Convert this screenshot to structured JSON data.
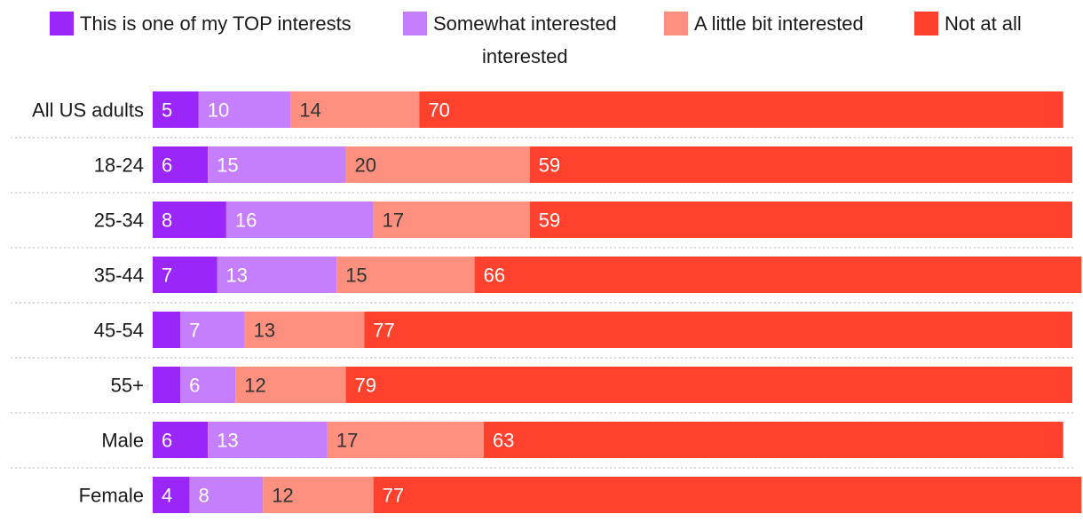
{
  "chart_data": {
    "type": "bar",
    "orientation": "horizontal",
    "stacked": true,
    "categories": [
      "All US adults",
      "18-24",
      "25-34",
      "35-44",
      "45-54",
      "55+",
      "Male",
      "Female"
    ],
    "series": [
      {
        "name": "This is one of my TOP interests",
        "color": "#9B26FA",
        "values": [
          5,
          6,
          8,
          7,
          3,
          3,
          6,
          4
        ],
        "labels": [
          "5",
          "6",
          "8",
          "7",
          "",
          "",
          "6",
          "4"
        ]
      },
      {
        "name": "Somewhat interested",
        "color": "#C57EFC",
        "values": [
          10,
          15,
          16,
          13,
          7,
          6,
          13,
          8
        ],
        "labels": [
          "10",
          "15",
          "16",
          "13",
          "7",
          "6",
          "13",
          "8"
        ]
      },
      {
        "name": "A little bit interested",
        "color": "#FF8F7E",
        "values": [
          14,
          20,
          17,
          15,
          13,
          12,
          17,
          12
        ],
        "labels": [
          "14",
          "20",
          "17",
          "15",
          "13",
          "12",
          "17",
          "12"
        ]
      },
      {
        "name": "Not at all interested",
        "color": "#FF412E",
        "values": [
          70,
          59,
          59,
          66,
          77,
          79,
          63,
          77
        ],
        "labels": [
          "70",
          "59",
          "59",
          "66",
          "77",
          "79",
          "63",
          "77"
        ]
      }
    ],
    "legend_position": "top",
    "gridlines": "dotted separators between rows"
  }
}
